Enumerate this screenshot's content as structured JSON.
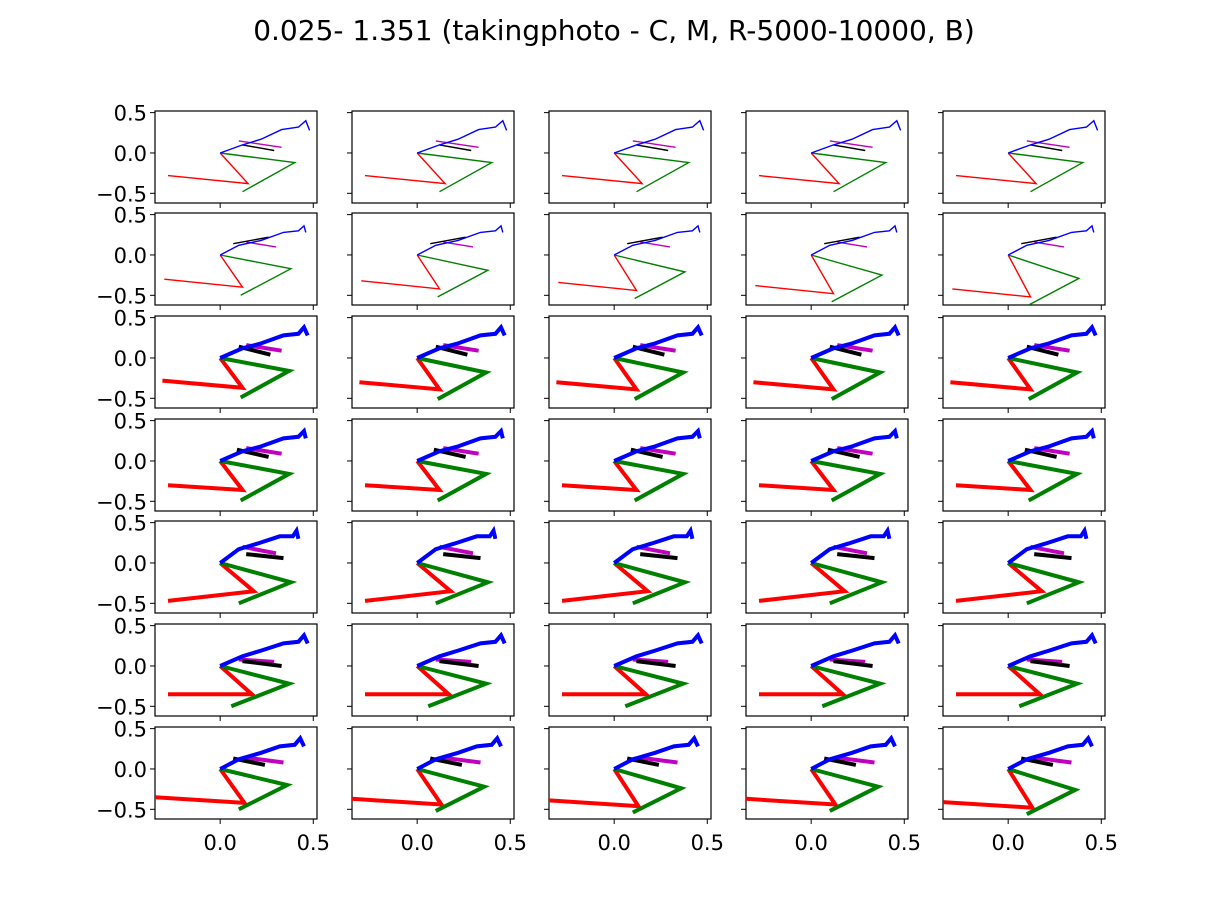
{
  "chart_data": {
    "type": "line",
    "title": "0.025- 1.351 (takingphoto - C, M, R-5000-10000, B)",
    "grid": false,
    "rows": 7,
    "cols": 5,
    "xlim": [
      -0.35,
      0.52
    ],
    "ylim": [
      -0.62,
      0.52
    ],
    "x_ticks": [
      0.0,
      0.5
    ],
    "x_tick_labels": [
      "0.0",
      "0.5"
    ],
    "y_ticks": [
      0.5,
      0.0,
      -0.5
    ],
    "y_tick_labels": [
      "0.5",
      "0.0",
      "−0.5"
    ],
    "colors": {
      "head_torso": "#0000ff",
      "arm_left": "#000000",
      "arm_right": "#bf00bf",
      "leg_right": "#ff0000",
      "leg_left": "#008000"
    },
    "series_order": [
      "leg_right",
      "leg_left",
      "arm_right",
      "arm_left",
      "head_torso"
    ],
    "row_line_width": [
      1.4,
      1.4,
      4.0,
      4.0,
      4.0,
      4.0,
      4.0
    ],
    "poses": [
      {
        "head_torso": [
          [
            0,
            0
          ],
          [
            0.12,
            0.1
          ],
          [
            0.22,
            0.17
          ],
          [
            0.33,
            0.29
          ],
          [
            0.42,
            0.32
          ],
          [
            0.46,
            0.4
          ],
          [
            0.48,
            0.28
          ]
        ],
        "arm_left": [
          [
            0.12,
            0.1
          ],
          [
            0.29,
            0.03
          ]
        ],
        "arm_right": [
          [
            0.1,
            0.15
          ],
          [
            0.33,
            0.07
          ]
        ],
        "leg_right": [
          [
            0,
            0
          ],
          [
            0.15,
            -0.38
          ],
          [
            -0.28,
            -0.28
          ]
        ],
        "leg_left": [
          [
            0,
            0
          ],
          [
            0.4,
            -0.12
          ],
          [
            0.12,
            -0.48
          ]
        ]
      },
      {
        "head_torso": [
          [
            0,
            0
          ],
          [
            0.1,
            0.12
          ],
          [
            0.22,
            0.18
          ],
          [
            0.34,
            0.28
          ],
          [
            0.42,
            0.3
          ],
          [
            0.45,
            0.36
          ],
          [
            0.46,
            0.28
          ]
        ],
        "arm_left": [
          [
            0.07,
            0.14
          ],
          [
            0.26,
            0.22
          ]
        ],
        "arm_right": [
          [
            0.14,
            0.16
          ],
          [
            0.3,
            0.1
          ]
        ],
        "leg_right": [
          [
            0,
            0
          ],
          [
            0.12,
            -0.4
          ],
          [
            -0.3,
            -0.3
          ]
        ],
        "leg_left": [
          [
            0,
            0
          ],
          [
            0.38,
            -0.17
          ],
          [
            0.11,
            -0.5
          ]
        ]
      },
      {
        "head_torso": [
          [
            0,
            0
          ],
          [
            0.12,
            0.12
          ],
          [
            0.22,
            0.18
          ],
          [
            0.34,
            0.28
          ],
          [
            0.42,
            0.3
          ],
          [
            0.45,
            0.38
          ],
          [
            0.47,
            0.28
          ]
        ],
        "arm_left": [
          [
            0.1,
            0.14
          ],
          [
            0.27,
            0.04
          ]
        ],
        "arm_right": [
          [
            0.14,
            0.16
          ],
          [
            0.33,
            0.09
          ]
        ],
        "leg_right": [
          [
            0,
            0
          ],
          [
            0.12,
            -0.37
          ],
          [
            -0.31,
            -0.28
          ]
        ],
        "leg_left": [
          [
            0,
            0
          ],
          [
            0.37,
            -0.16
          ],
          [
            0.11,
            -0.49
          ]
        ]
      },
      {
        "head_torso": [
          [
            0,
            0
          ],
          [
            0.12,
            0.12
          ],
          [
            0.22,
            0.18
          ],
          [
            0.34,
            0.28
          ],
          [
            0.42,
            0.3
          ],
          [
            0.45,
            0.37
          ],
          [
            0.46,
            0.28
          ]
        ],
        "arm_left": [
          [
            0.09,
            0.14
          ],
          [
            0.26,
            0.05
          ]
        ],
        "arm_right": [
          [
            0.14,
            0.16
          ],
          [
            0.33,
            0.09
          ]
        ],
        "leg_right": [
          [
            0,
            0
          ],
          [
            0.12,
            -0.36
          ],
          [
            -0.28,
            -0.3
          ]
        ],
        "leg_left": [
          [
            0,
            0
          ],
          [
            0.37,
            -0.16
          ],
          [
            0.11,
            -0.49
          ]
        ]
      },
      {
        "head_torso": [
          [
            0,
            0
          ],
          [
            0.1,
            0.17
          ],
          [
            0.2,
            0.24
          ],
          [
            0.32,
            0.33
          ],
          [
            0.39,
            0.33
          ],
          [
            0.41,
            0.4
          ],
          [
            0.42,
            0.3
          ]
        ],
        "arm_left": [
          [
            0.14,
            0.11
          ],
          [
            0.34,
            0.06
          ]
        ],
        "arm_right": [
          [
            0.12,
            0.2
          ],
          [
            0.3,
            0.12
          ]
        ],
        "leg_right": [
          [
            0,
            0
          ],
          [
            0.18,
            -0.35
          ],
          [
            -0.28,
            -0.47
          ]
        ],
        "leg_left": [
          [
            0,
            0
          ],
          [
            0.38,
            -0.24
          ],
          [
            0.1,
            -0.5
          ]
        ]
      },
      {
        "head_torso": [
          [
            0,
            0
          ],
          [
            0.12,
            0.12
          ],
          [
            0.22,
            0.19
          ],
          [
            0.34,
            0.28
          ],
          [
            0.42,
            0.3
          ],
          [
            0.45,
            0.38
          ],
          [
            0.47,
            0.28
          ]
        ],
        "arm_left": [
          [
            0.12,
            0.06
          ],
          [
            0.33,
            0.0
          ]
        ],
        "arm_right": [
          [
            0.1,
            0.08
          ],
          [
            0.29,
            0.05
          ]
        ],
        "leg_right": [
          [
            0,
            0
          ],
          [
            0.17,
            -0.35
          ],
          [
            -0.28,
            -0.35
          ]
        ],
        "leg_left": [
          [
            0,
            0
          ],
          [
            0.37,
            -0.22
          ],
          [
            0.06,
            -0.5
          ]
        ]
      },
      {
        "head_torso": [
          [
            0,
            0
          ],
          [
            0.1,
            0.12
          ],
          [
            0.22,
            0.2
          ],
          [
            0.32,
            0.28
          ],
          [
            0.4,
            0.3
          ],
          [
            0.43,
            0.38
          ],
          [
            0.45,
            0.28
          ]
        ],
        "arm_left": [
          [
            0.07,
            0.13
          ],
          [
            0.24,
            0.05
          ]
        ],
        "arm_right": [
          [
            0.14,
            0.14
          ],
          [
            0.34,
            0.08
          ]
        ],
        "leg_right": [
          [
            0,
            0
          ],
          [
            0.13,
            -0.42
          ],
          [
            -0.35,
            -0.35
          ]
        ],
        "leg_left": [
          [
            0,
            0
          ],
          [
            0.36,
            -0.2
          ],
          [
            0.1,
            -0.5
          ]
        ]
      }
    ],
    "column_offsets": [
      [
        [
          0,
          0
        ],
        [
          0,
          0
        ],
        [
          0,
          0
        ],
        [
          0,
          0
        ],
        [
          0,
          0
        ]
      ],
      [
        [
          0,
          0
        ],
        [
          0,
          -0.02
        ],
        [
          0,
          -0.04
        ],
        [
          0,
          -0.08
        ],
        [
          0,
          -0.12
        ]
      ],
      [
        [
          0,
          0
        ],
        [
          0,
          -0.02
        ],
        [
          0,
          -0.02
        ],
        [
          0,
          -0.02
        ],
        [
          0,
          -0.02
        ]
      ],
      [
        [
          0,
          0
        ],
        [
          0,
          0
        ],
        [
          0,
          0
        ],
        [
          0,
          0
        ],
        [
          0,
          0
        ]
      ],
      [
        [
          0,
          0
        ],
        [
          0,
          0
        ],
        [
          0,
          0
        ],
        [
          0,
          0
        ],
        [
          0,
          0
        ]
      ],
      [
        [
          0,
          0
        ],
        [
          0,
          0
        ],
        [
          0,
          0
        ],
        [
          0,
          0
        ],
        [
          0,
          0
        ]
      ],
      [
        [
          0,
          0
        ],
        [
          0,
          -0.02
        ],
        [
          0,
          -0.04
        ],
        [
          0,
          -0.02
        ],
        [
          0,
          -0.06
        ]
      ]
    ]
  }
}
